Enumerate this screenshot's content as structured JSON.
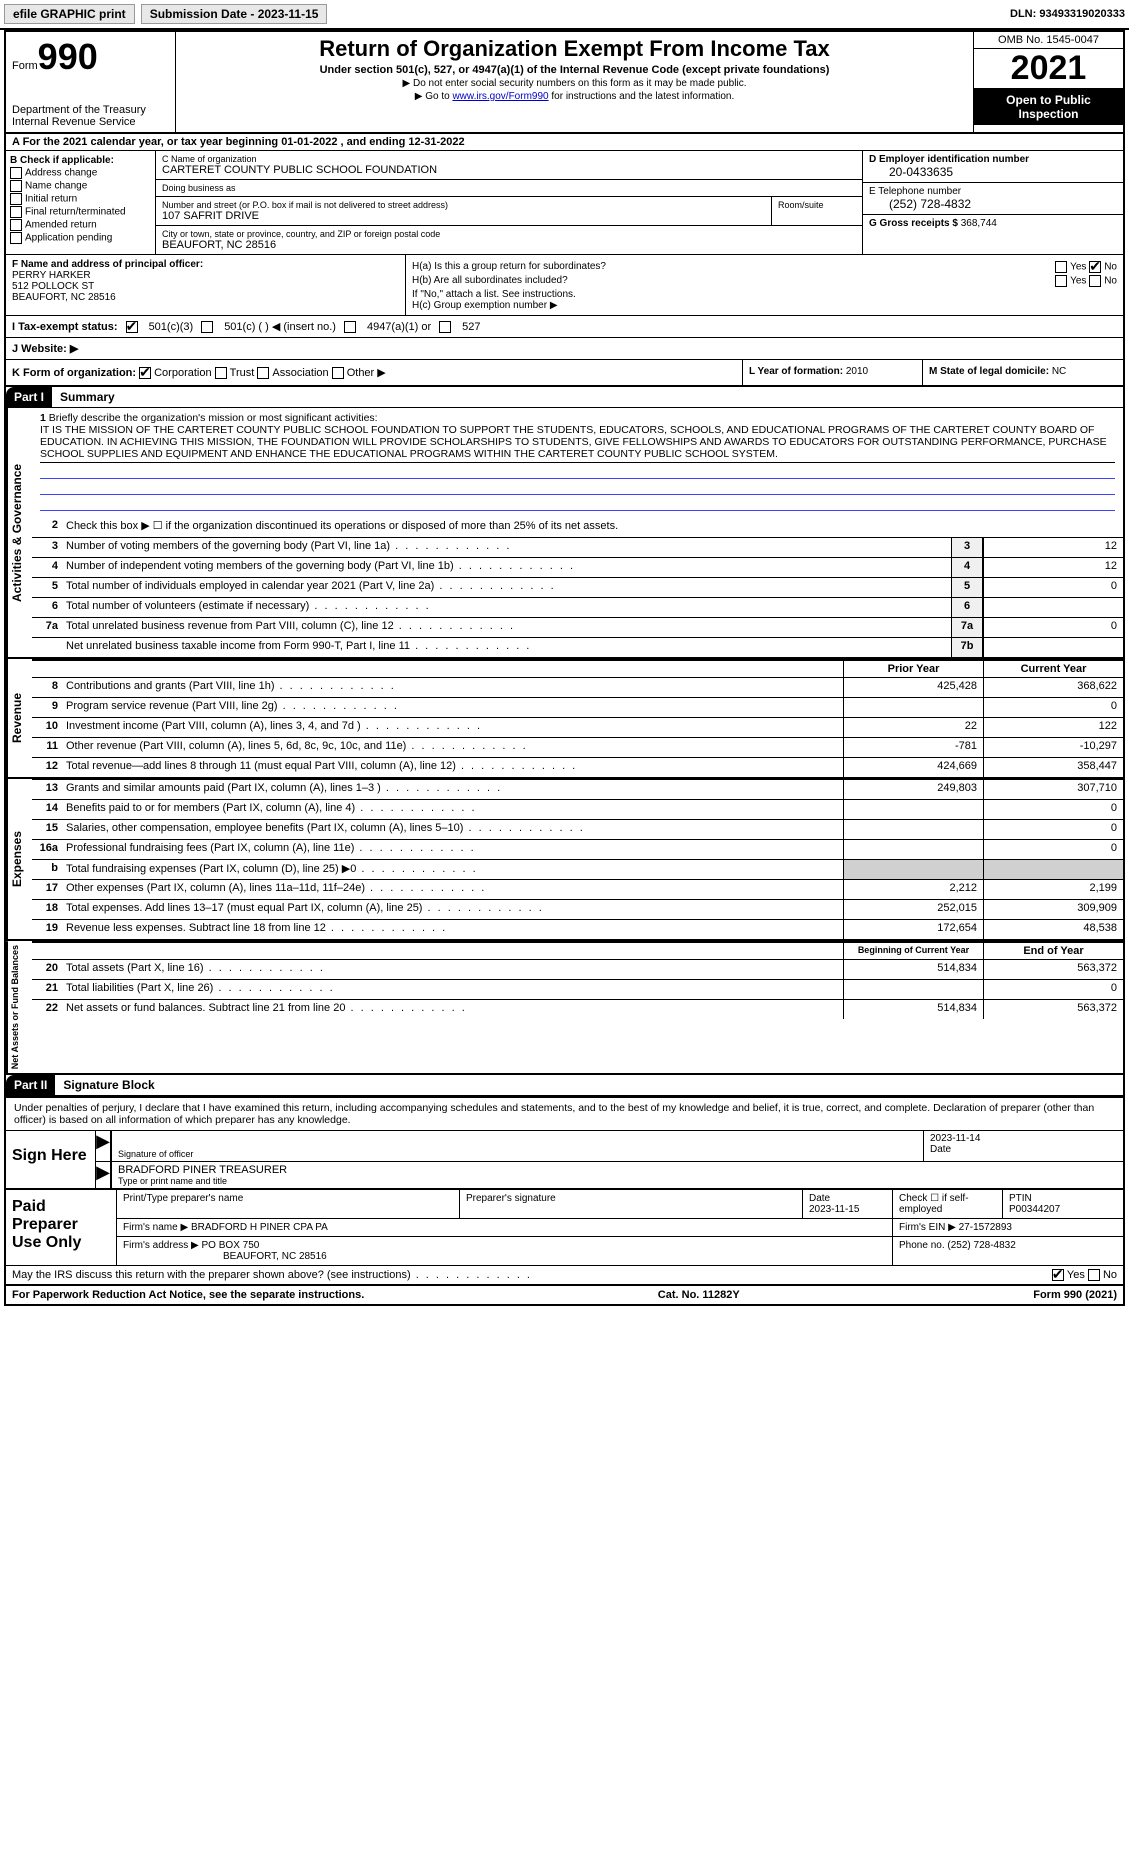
{
  "toolbar": {
    "efile": "efile GRAPHIC print",
    "submission": "Submission Date - 2023-11-15",
    "dln": "DLN: 93493319020333"
  },
  "header": {
    "form_label": "Form",
    "form_num": "990",
    "dept": "Department of the Treasury",
    "irs": "Internal Revenue Service",
    "title": "Return of Organization Exempt From Income Tax",
    "subtitle": "Under section 501(c), 527, or 4947(a)(1) of the Internal Revenue Code (except private foundations)",
    "note1": "▶ Do not enter social security numbers on this form as it may be made public.",
    "note2_pre": "▶ Go to ",
    "note2_link": "www.irs.gov/Form990",
    "note2_post": " for instructions and the latest information.",
    "omb": "OMB No. 1545-0047",
    "year": "2021",
    "open": "Open to Public Inspection"
  },
  "row_a": "A For the 2021 calendar year, or tax year beginning 01-01-2022   , and ending 12-31-2022",
  "col_b": {
    "title": "B Check if applicable:",
    "opts": [
      "Address change",
      "Name change",
      "Initial return",
      "Final return/terminated",
      "Amended return",
      "Application pending"
    ]
  },
  "col_c": {
    "name_lbl": "C Name of organization",
    "name": "CARTERET COUNTY PUBLIC SCHOOL FOUNDATION",
    "dba_lbl": "Doing business as",
    "dba": "",
    "addr_lbl": "Number and street (or P.O. box if mail is not delivered to street address)",
    "addr": "107 SAFRIT DRIVE",
    "room_lbl": "Room/suite",
    "city_lbl": "City or town, state or province, country, and ZIP or foreign postal code",
    "city": "BEAUFORT, NC  28516"
  },
  "col_de": {
    "ein_lbl": "D Employer identification number",
    "ein": "20-0433635",
    "tel_lbl": "E Telephone number",
    "tel": "(252) 728-4832",
    "gross_lbl": "G Gross receipts $",
    "gross": "368,744"
  },
  "col_f": {
    "lbl": "F Name and address of principal officer:",
    "name": "PERRY HARKER",
    "addr1": "512 POLLOCK ST",
    "addr2": "BEAUFORT, NC  28516"
  },
  "col_h": {
    "ha": "H(a)  Is this a group return for subordinates?",
    "hb": "H(b)  Are all subordinates included?",
    "hb_note": "If \"No,\" attach a list. See instructions.",
    "hc": "H(c)  Group exemption number ▶"
  },
  "row_i": {
    "lbl": "I  Tax-exempt status:",
    "o1": "501(c)(3)",
    "o2": "501(c) (   ) ◀ (insert no.)",
    "o3": "4947(a)(1) or",
    "o4": "527"
  },
  "row_j": {
    "lbl": "J  Website: ▶",
    "val": ""
  },
  "row_k": {
    "lbl": "K Form of organization:",
    "o1": "Corporation",
    "o2": "Trust",
    "o3": "Association",
    "o4": "Other ▶"
  },
  "row_l": {
    "lbl": "L Year of formation:",
    "val": "2010"
  },
  "row_m": {
    "lbl": "M State of legal domicile:",
    "val": "NC"
  },
  "parts": {
    "p1": "Part I",
    "p1t": "Summary",
    "p2": "Part II",
    "p2t": "Signature Block"
  },
  "summary": {
    "q1": "Briefly describe the organization's mission or most significant activities:",
    "mission": "IT IS THE MISSION OF THE CARTERET COUNTY PUBLIC SCHOOL FOUNDATION TO SUPPORT THE STUDENTS, EDUCATORS, SCHOOLS, AND EDUCATIONAL PROGRAMS OF THE CARTERET COUNTY BOARD OF EDUCATION. IN ACHIEVING THIS MISSION, THE FOUNDATION WILL PROVIDE SCHOLARSHIPS TO STUDENTS, GIVE FELLOWSHIPS AND AWARDS TO EDUCATORS FOR OUTSTANDING PERFORMANCE, PURCHASE SCHOOL SUPPLIES AND EQUIPMENT AND ENHANCE THE EDUCATIONAL PROGRAMS WITHIN THE CARTERET COUNTY PUBLIC SCHOOL SYSTEM.",
    "q2": "Check this box ▶ ☐  if the organization discontinued its operations or disposed of more than 25% of its net assets.",
    "lines_ag": [
      {
        "n": "3",
        "d": "Number of voting members of the governing body (Part VI, line 1a)",
        "box": "3",
        "v": "12"
      },
      {
        "n": "4",
        "d": "Number of independent voting members of the governing body (Part VI, line 1b)",
        "box": "4",
        "v": "12"
      },
      {
        "n": "5",
        "d": "Total number of individuals employed in calendar year 2021 (Part V, line 2a)",
        "box": "5",
        "v": "0"
      },
      {
        "n": "6",
        "d": "Total number of volunteers (estimate if necessary)",
        "box": "6",
        "v": ""
      },
      {
        "n": "7a",
        "d": "Total unrelated business revenue from Part VIII, column (C), line 12",
        "box": "7a",
        "v": "0"
      },
      {
        "n": "",
        "d": "Net unrelated business taxable income from Form 990-T, Part I, line 11",
        "box": "7b",
        "v": ""
      }
    ],
    "hdr_prior": "Prior Year",
    "hdr_current": "Current Year",
    "tabs": {
      "ag": "Activities & Governance",
      "rev": "Revenue",
      "exp": "Expenses",
      "na": "Net Assets or Fund Balances"
    },
    "rev": [
      {
        "n": "8",
        "d": "Contributions and grants (Part VIII, line 1h)",
        "p": "425,428",
        "c": "368,622"
      },
      {
        "n": "9",
        "d": "Program service revenue (Part VIII, line 2g)",
        "p": "",
        "c": "0"
      },
      {
        "n": "10",
        "d": "Investment income (Part VIII, column (A), lines 3, 4, and 7d )",
        "p": "22",
        "c": "122"
      },
      {
        "n": "11",
        "d": "Other revenue (Part VIII, column (A), lines 5, 6d, 8c, 9c, 10c, and 11e)",
        "p": "-781",
        "c": "-10,297"
      },
      {
        "n": "12",
        "d": "Total revenue—add lines 8 through 11 (must equal Part VIII, column (A), line 12)",
        "p": "424,669",
        "c": "358,447"
      }
    ],
    "exp": [
      {
        "n": "13",
        "d": "Grants and similar amounts paid (Part IX, column (A), lines 1–3 )",
        "p": "249,803",
        "c": "307,710"
      },
      {
        "n": "14",
        "d": "Benefits paid to or for members (Part IX, column (A), line 4)",
        "p": "",
        "c": "0"
      },
      {
        "n": "15",
        "d": "Salaries, other compensation, employee benefits (Part IX, column (A), lines 5–10)",
        "p": "",
        "c": "0"
      },
      {
        "n": "16a",
        "d": "Professional fundraising fees (Part IX, column (A), line 11e)",
        "p": "",
        "c": "0"
      },
      {
        "n": "b",
        "d": "Total fundraising expenses (Part IX, column (D), line 25) ▶0",
        "p": "shade",
        "c": "shade"
      },
      {
        "n": "17",
        "d": "Other expenses (Part IX, column (A), lines 11a–11d, 11f–24e)",
        "p": "2,212",
        "c": "2,199"
      },
      {
        "n": "18",
        "d": "Total expenses. Add lines 13–17 (must equal Part IX, column (A), line 25)",
        "p": "252,015",
        "c": "309,909"
      },
      {
        "n": "19",
        "d": "Revenue less expenses. Subtract line 18 from line 12",
        "p": "172,654",
        "c": "48,538"
      }
    ],
    "hdr_boy": "Beginning of Current Year",
    "hdr_eoy": "End of Year",
    "na": [
      {
        "n": "20",
        "d": "Total assets (Part X, line 16)",
        "p": "514,834",
        "c": "563,372"
      },
      {
        "n": "21",
        "d": "Total liabilities (Part X, line 26)",
        "p": "",
        "c": "0"
      },
      {
        "n": "22",
        "d": "Net assets or fund balances. Subtract line 21 from line 20",
        "p": "514,834",
        "c": "563,372"
      }
    ]
  },
  "sig": {
    "intro": "Under penalties of perjury, I declare that I have examined this return, including accompanying schedules and statements, and to the best of my knowledge and belief, it is true, correct, and complete. Declaration of preparer (other than officer) is based on all information of which preparer has any knowledge.",
    "sign_here": "Sign Here",
    "sig_lbl": "Signature of officer",
    "date": "2023-11-14",
    "date_lbl": "Date",
    "name": "BRADFORD PINER  TREASURER",
    "name_lbl": "Type or print name and title"
  },
  "prep": {
    "lbl": "Paid Preparer Use Only",
    "h1": "Print/Type preparer's name",
    "h2": "Preparer's signature",
    "h3": "Date",
    "h3v": "2023-11-15",
    "h4": "Check ☐ if self-employed",
    "h5": "PTIN",
    "h5v": "P00344207",
    "firm_lbl": "Firm's name    ▶",
    "firm": "BRADFORD H PINER CPA PA",
    "ein_lbl": "Firm's EIN ▶",
    "ein": "27-1572893",
    "addr_lbl": "Firm's address ▶",
    "addr": "PO BOX 750",
    "addr2": "BEAUFORT, NC  28516",
    "phone_lbl": "Phone no.",
    "phone": "(252) 728-4832"
  },
  "footer": {
    "discuss": "May the IRS discuss this return with the preparer shown above? (see instructions)",
    "pra": "For Paperwork Reduction Act Notice, see the separate instructions.",
    "cat": "Cat. No. 11282Y",
    "form": "Form 990 (2021)"
  },
  "yesno": {
    "yes": "Yes",
    "no": "No"
  }
}
